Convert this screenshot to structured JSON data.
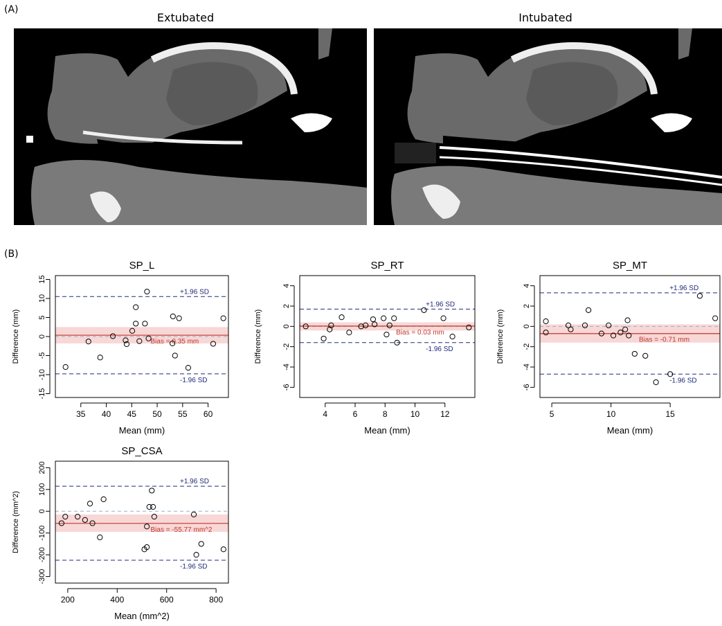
{
  "labels": {
    "panel_a": "(A)",
    "panel_b": "(B)"
  },
  "images": {
    "left_title": "Extubated",
    "right_title": "Intubated"
  },
  "colors": {
    "bias_line": "#c0392b",
    "limit_line": "#1f2a7a",
    "ci_band": "#f8d7d7",
    "zero_line": "#9ab0c0"
  },
  "chart_data": [
    {
      "type": "scatter",
      "title": "SP_L",
      "xlabel": "Mean (mm)",
      "ylabel": "Difference (mm)",
      "xlim": [
        30,
        64
      ],
      "ylim": [
        -16,
        16
      ],
      "xticks": [
        35,
        40,
        45,
        50,
        55,
        60
      ],
      "yticks": [
        -15,
        -10,
        -5,
        0,
        5,
        10,
        15
      ],
      "bias": 0.35,
      "upper_loa": 10.5,
      "lower_loa": -9.8,
      "ci_band": [
        -1.8,
        2.5
      ],
      "upper_label": "+1.96 SD",
      "lower_label": "-1.96 SD",
      "bias_label": "Bias =  0.35 mm",
      "points": [
        [
          32,
          -8
        ],
        [
          36.5,
          -1.3
        ],
        [
          38.8,
          -5.5
        ],
        [
          41.3,
          0.1
        ],
        [
          43.8,
          -1
        ],
        [
          44,
          -2
        ],
        [
          45.1,
          1.5
        ],
        [
          45.8,
          7.7
        ],
        [
          45.8,
          3.4
        ],
        [
          46.5,
          -1.2
        ],
        [
          47.6,
          3.4
        ],
        [
          48,
          11.8
        ],
        [
          48.3,
          -0.5
        ],
        [
          53.1,
          5.3
        ],
        [
          53,
          -1.8
        ],
        [
          53.5,
          -5
        ],
        [
          54.3,
          4.8
        ],
        [
          56.1,
          -8.2
        ],
        [
          61,
          -1.9
        ],
        [
          63,
          4.8
        ]
      ]
    },
    {
      "type": "scatter",
      "title": "SP_RT",
      "xlabel": "Mean (mm)",
      "ylabel": "Difference (mm)",
      "xlim": [
        2.3,
        14
      ],
      "ylim": [
        -7,
        5
      ],
      "xticks": [
        4,
        6,
        8,
        10,
        12
      ],
      "yticks": [
        -6,
        -4,
        -2,
        0,
        2,
        4
      ],
      "bias": 0.03,
      "upper_loa": 1.7,
      "lower_loa": -1.6,
      "ci_band": [
        -0.4,
        0.4
      ],
      "upper_label": "+1.96 SD",
      "lower_label": "-1.96 SD",
      "bias_label": "Bias =  0.03 mm",
      "points": [
        [
          2.7,
          0
        ],
        [
          3.9,
          -1.2
        ],
        [
          4.4,
          0.1
        ],
        [
          4.3,
          -0.3
        ],
        [
          5.1,
          0.9
        ],
        [
          5.6,
          -0.6
        ],
        [
          6.4,
          0
        ],
        [
          6.7,
          0.1
        ],
        [
          7.2,
          0.7
        ],
        [
          7.3,
          0.2
        ],
        [
          7.9,
          0.8
        ],
        [
          8.1,
          -0.8
        ],
        [
          8.3,
          0.1
        ],
        [
          8.6,
          0.8
        ],
        [
          8.8,
          -1.6
        ],
        [
          10.6,
          1.6
        ],
        [
          11.9,
          0.8
        ],
        [
          12.5,
          -1
        ],
        [
          13.6,
          -0.1
        ]
      ]
    },
    {
      "type": "scatter",
      "title": "SP_MT",
      "xlabel": "Mean (mm)",
      "ylabel": "Difference (mm)",
      "xlim": [
        4,
        19.2
      ],
      "ylim": [
        -7,
        5
      ],
      "xticks": [
        5,
        10,
        15
      ],
      "yticks": [
        -6,
        -4,
        -2,
        0,
        2,
        4
      ],
      "bias": -0.71,
      "upper_loa": 3.3,
      "lower_loa": -4.7,
      "ci_band": [
        -1.6,
        0.2
      ],
      "upper_label": "+1.96 SD",
      "lower_label": "-1.96 SD",
      "bias_label": "Bias =  -0.71 mm",
      "points": [
        [
          4.5,
          0.5
        ],
        [
          4.5,
          -0.6
        ],
        [
          6.4,
          0.1
        ],
        [
          6.6,
          -0.3
        ],
        [
          7.8,
          0.1
        ],
        [
          8.1,
          1.6
        ],
        [
          9.2,
          -0.7
        ],
        [
          9.8,
          0.1
        ],
        [
          10.2,
          -0.9
        ],
        [
          10.8,
          -0.6
        ],
        [
          11.2,
          -0.3
        ],
        [
          11.4,
          0.6
        ],
        [
          11.5,
          -0.9
        ],
        [
          12,
          -2.7
        ],
        [
          12.9,
          -2.9
        ],
        [
          13.8,
          -5.5
        ],
        [
          15,
          -4.7
        ],
        [
          17.5,
          3
        ],
        [
          18.8,
          0.8
        ]
      ]
    },
    {
      "type": "scatter",
      "title": "SP_CSA",
      "xlabel": "Mean (mm^2)",
      "ylabel": "Difference (mm^2)",
      "xlim": [
        150,
        850
      ],
      "ylim": [
        -330,
        230
      ],
      "xticks": [
        200,
        400,
        600,
        800
      ],
      "yticks": [
        -300,
        -200,
        -100,
        0,
        100,
        200
      ],
      "bias": -55.77,
      "upper_loa": 115,
      "lower_loa": -225,
      "ci_band": [
        -95,
        -15
      ],
      "upper_label": "+1.96 SD",
      "lower_label": "-1.96 SD",
      "bias_label": "Bias =  -55.77 mm^2",
      "points": [
        [
          175,
          -55
        ],
        [
          190,
          -25
        ],
        [
          240,
          -25
        ],
        [
          270,
          -40
        ],
        [
          290,
          35
        ],
        [
          300,
          -55
        ],
        [
          330,
          -120
        ],
        [
          345,
          55
        ],
        [
          510,
          -175
        ],
        [
          520,
          -165
        ],
        [
          520,
          -70
        ],
        [
          530,
          20
        ],
        [
          540,
          95
        ],
        [
          545,
          20
        ],
        [
          550,
          -25
        ],
        [
          710,
          -15
        ],
        [
          720,
          -200
        ],
        [
          740,
          -150
        ],
        [
          830,
          -175
        ]
      ]
    }
  ]
}
